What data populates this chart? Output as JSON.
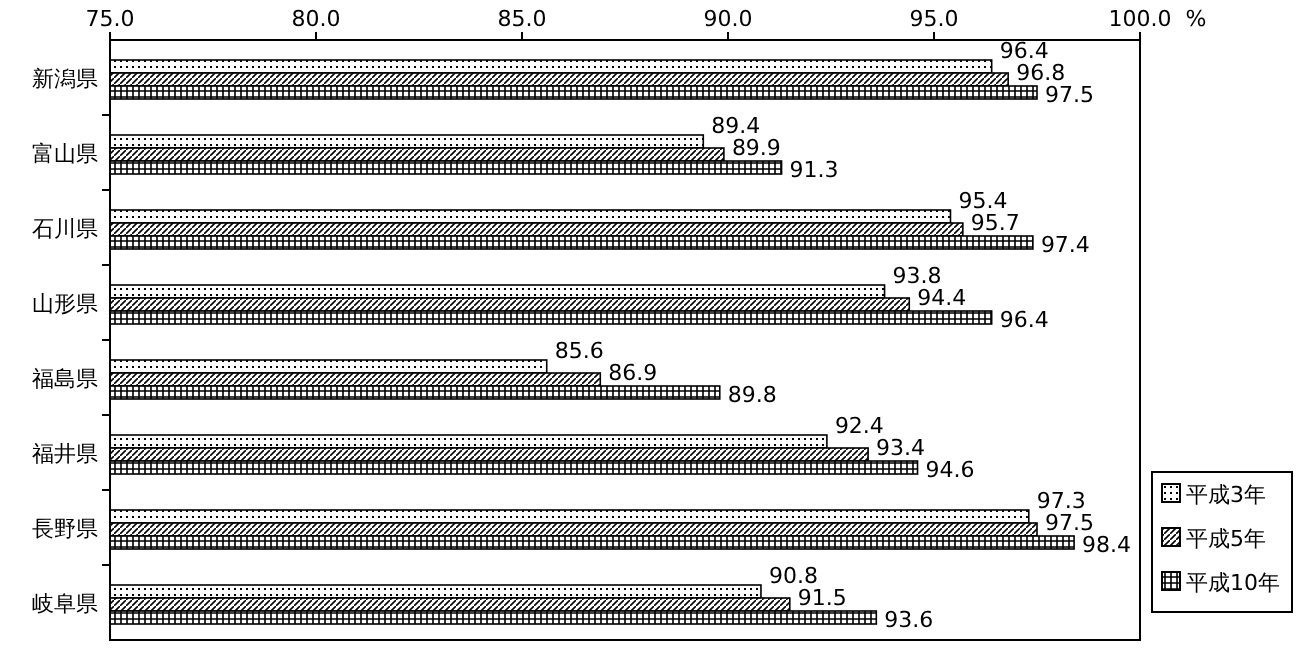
{
  "chart_data": {
    "type": "bar",
    "orientation": "horizontal",
    "xlabel": "%",
    "categories": [
      "新潟県",
      "富山県",
      "石川県",
      "山形県",
      "福島県",
      "福井県",
      "長野県",
      "岐阜県"
    ],
    "series": [
      {
        "name": "平成3年",
        "color": "#000000",
        "values": [
          96.4,
          89.4,
          95.4,
          93.8,
          85.6,
          92.4,
          97.3,
          90.8
        ]
      },
      {
        "name": "平成5年",
        "color": "#000000",
        "values": [
          96.8,
          89.9,
          95.7,
          94.4,
          86.9,
          93.4,
          97.5,
          91.5
        ]
      },
      {
        "name": "平成10年",
        "color": "#000000",
        "values": [
          97.5,
          91.3,
          97.4,
          96.4,
          89.8,
          94.6,
          98.4,
          93.6
        ]
      }
    ],
    "xlim": [
      75,
      100
    ],
    "xticks": [
      {
        "value": 75,
        "label": "75.0"
      },
      {
        "value": 80,
        "label": "80.0"
      },
      {
        "value": 85,
        "label": "85.0"
      },
      {
        "value": 90,
        "label": "90.0"
      },
      {
        "value": 95,
        "label": "95.0"
      },
      {
        "value": 100,
        "label": "100.0"
      }
    ],
    "data_labels": true,
    "legend": "bottom right",
    "grid": false
  }
}
